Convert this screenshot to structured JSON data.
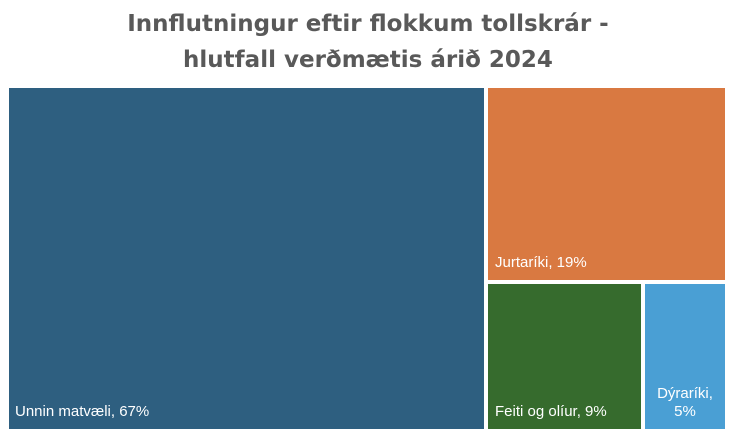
{
  "chart_data": {
    "type": "treemap",
    "title": "Innflutningur  eftir flokkum tollskrár -",
    "subtitle": "hlutfall verðmætis árið 2024",
    "items": [
      {
        "name": "Unnin matvæli",
        "label": "Unnin matvæli, 67%",
        "value": 67,
        "color": "#2e5f80"
      },
      {
        "name": "Jurtaríki",
        "label": "Jurtaríki, 19%",
        "value": 19,
        "color": "#d97941"
      },
      {
        "name": "Feiti og olíur",
        "label": "Feiti og olíur, 9%",
        "value": 9,
        "color": "#366b2d"
      },
      {
        "name": "Dýraríki",
        "label_line1": "Dýraríki,",
        "label_line2": "5%",
        "value": 5,
        "color": "#4a9fd4"
      }
    ]
  }
}
